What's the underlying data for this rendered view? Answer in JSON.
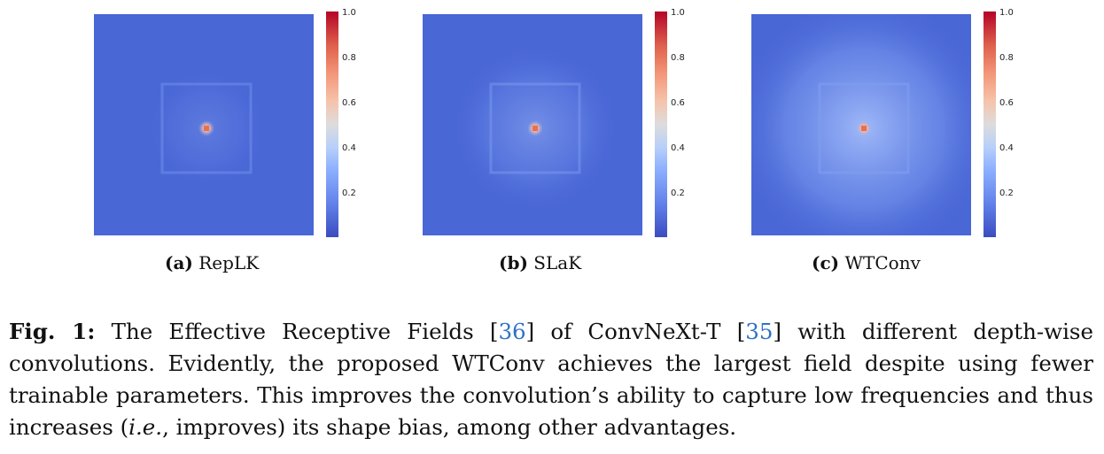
{
  "panels": [
    {
      "label": "(a)",
      "name": "RepLK",
      "spread": 0.25
    },
    {
      "label": "(b)",
      "name": "SLaK",
      "spread": 0.5
    },
    {
      "label": "(c)",
      "name": "WTConv",
      "spread": 1.0
    }
  ],
  "colorbar": {
    "ticks": [
      "1.0",
      "0.8",
      "0.6",
      "0.4",
      "0.2"
    ],
    "colors": [
      "#3b4cc0",
      "#6282ea",
      "#8db0fe",
      "#b8d0f9",
      "#dddcdc",
      "#f5c4ac",
      "#f4987a",
      "#de604d",
      "#b40426"
    ]
  },
  "caption": {
    "fig_label": "Fig. 1:",
    "t1": " The Effective Receptive Fields ",
    "c1a": "[",
    "c1": "36",
    "c1b": "]",
    "t2": " of ConvNeXt-T ",
    "c2a": "[",
    "c2": "35",
    "c2b": "]",
    "t3": " with different depth-wise convolutions. Evidently, the proposed WTConv achieves the largest field despite using fewer trainable parameters. This improves the convolution’s ability to capture low frequencies and thus increases (",
    "ie": "i.e.",
    "t4": ", improves) its shape bias, among other advantages."
  }
}
